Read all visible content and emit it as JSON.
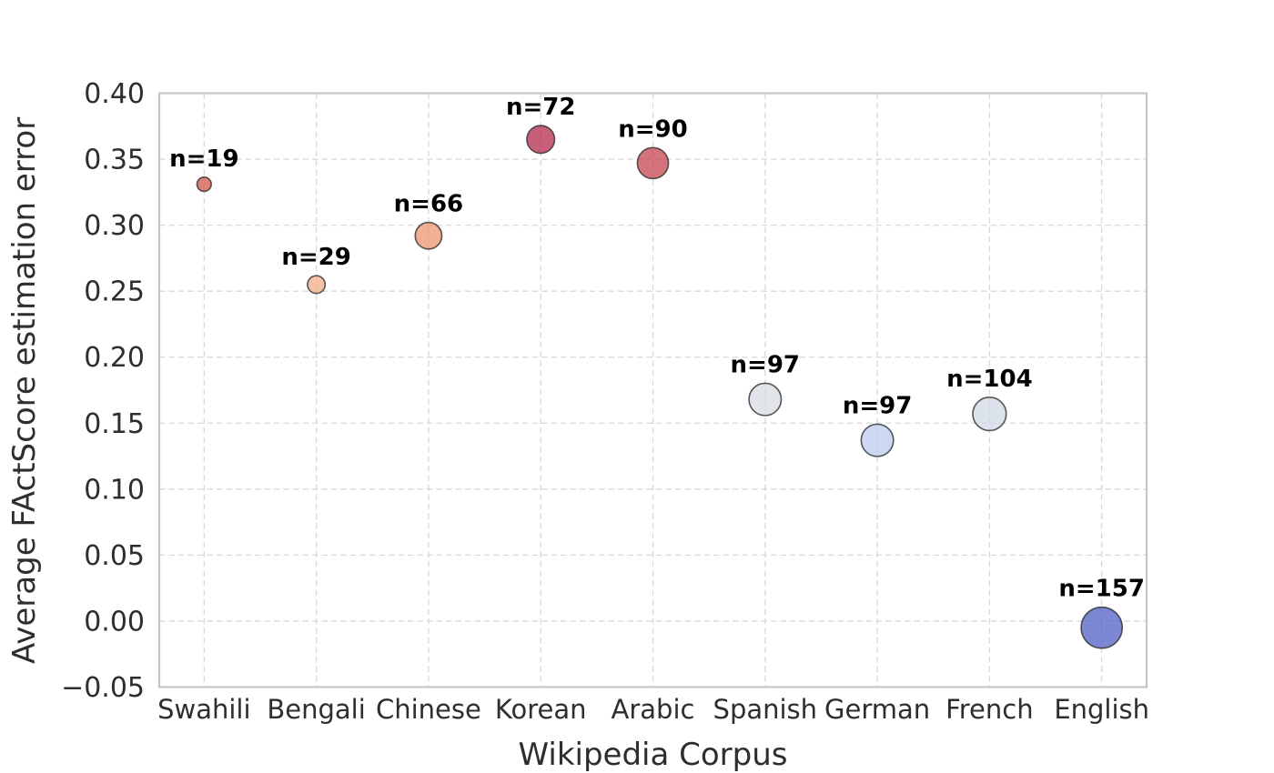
{
  "chart_data": {
    "type": "scatter",
    "subtype": "bubble",
    "title": "",
    "xlabel": "Wikipedia Corpus",
    "ylabel": "Average FActScore estimation error",
    "categories": [
      "Swahili",
      "Bengali",
      "Chinese",
      "Korean",
      "Arabic",
      "Spanish",
      "German",
      "French",
      "English"
    ],
    "points": [
      {
        "language": "Swahili",
        "value": 0.331,
        "n": 19,
        "label": "n=19",
        "fill": "#d05848"
      },
      {
        "language": "Bengali",
        "value": 0.255,
        "n": 29,
        "label": "n=29",
        "fill": "#f3ae8a"
      },
      {
        "language": "Chinese",
        "value": 0.292,
        "n": 66,
        "label": "n=66",
        "fill": "#ee9470"
      },
      {
        "language": "Korean",
        "value": 0.365,
        "n": 72,
        "label": "n=72",
        "fill": "#b42a4b"
      },
      {
        "language": "Arabic",
        "value": 0.347,
        "n": 90,
        "label": "n=90",
        "fill": "#c6444f"
      },
      {
        "language": "Spanish",
        "value": 0.168,
        "n": 97,
        "label": "n=97",
        "fill": "#d7dce3"
      },
      {
        "language": "German",
        "value": 0.137,
        "n": 97,
        "label": "n=97",
        "fill": "#bcccef"
      },
      {
        "language": "French",
        "value": 0.157,
        "n": 104,
        "label": "n=104",
        "fill": "#d2dae6"
      },
      {
        "language": "English",
        "value": -0.005,
        "n": 157,
        "label": "n=157",
        "fill": "#5260c7"
      }
    ],
    "ylim": [
      -0.05,
      0.4
    ],
    "yticks": [
      0.4,
      0.35,
      0.3,
      0.25,
      0.2,
      0.15,
      0.1,
      0.05,
      0.0,
      -0.05
    ],
    "ytick_labels": [
      "0.40",
      "0.35",
      "0.30",
      "0.25",
      "0.20",
      "0.15",
      "0.10",
      "0.05",
      "0.00",
      "−0.05"
    ],
    "grid": {
      "on": true,
      "style": "dashed",
      "color": "#d9d9d9"
    },
    "legend": "none",
    "style": {
      "spine_color": "#c6c6c6",
      "tick_text_color": "#2e2e2e",
      "annotation_color": "#000000",
      "point_edge_color": "#303030",
      "point_alpha": 0.75,
      "bubble_radius_factor": 1.8,
      "colormap": "coolwarm"
    }
  }
}
